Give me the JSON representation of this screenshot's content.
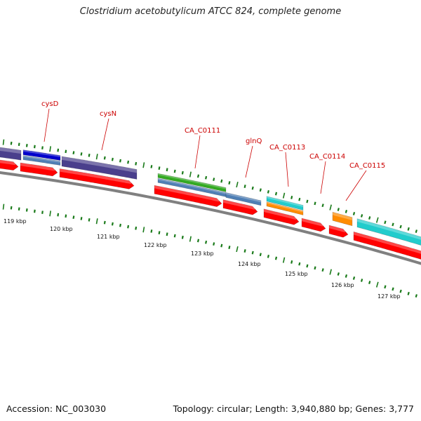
{
  "title": "Clostridium acetobutylicum ATCC 824, complete genome",
  "accession": "Accession: NC_003030",
  "stats": "Topology: circular; Length: 3,940,880 bp; Genes: 3,777",
  "colors": {
    "backbone": "#808080",
    "cds": "#ff0000",
    "label": "#cc0000",
    "ticks": "#1a7a1a"
  },
  "kbp_labels": [
    "119 kbp",
    "120 kbp",
    "121 kbp",
    "122 kbp",
    "123 kbp",
    "124 kbp",
    "125 kbp",
    "126 kbp",
    "127 kbp"
  ],
  "gene_labels": [
    "cysD",
    "cysN",
    "CA_C0111",
    "glnQ",
    "CA_C0113",
    "CA_C0114",
    "CA_C0115"
  ],
  "feature_colors": {
    "dark_purple": "#4a3f8c",
    "blue": "#0000cc",
    "steel_blue": "#4f7fb5",
    "green": "#33aa22",
    "cyan": "#22cccc",
    "orange": "#ff8c00"
  }
}
